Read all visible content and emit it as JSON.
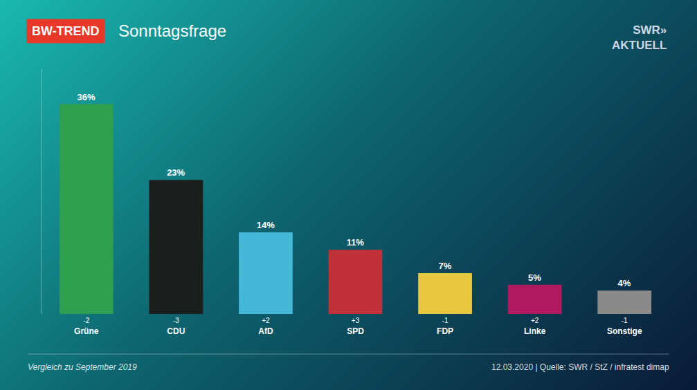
{
  "chart_data": {
    "type": "bar",
    "title": "Sonntagsfrage",
    "badge": "BW-TREND",
    "badge_color": "#e8382a",
    "logo": [
      "SWR»",
      "AKTUELL"
    ],
    "categories": [
      "Grüne",
      "CDU",
      "AfD",
      "SPD",
      "FDP",
      "Linke",
      "Sonstige"
    ],
    "values": [
      36,
      23,
      14,
      11,
      7,
      5,
      4
    ],
    "value_labels": [
      "36%",
      "23%",
      "14%",
      "11%",
      "7%",
      "5%",
      "4%"
    ],
    "change_labels": [
      "-2",
      "-3",
      "+2",
      "+3",
      "-1",
      "+2",
      "-1"
    ],
    "colors": [
      "#2e9e4f",
      "#1a1f1e",
      "#45b8d8",
      "#c0313a",
      "#e8c840",
      "#b01a5e",
      "#8a8a8a"
    ],
    "ylim": [
      0,
      42
    ],
    "data_labels": true,
    "tick_labels": "x",
    "grid": false,
    "footer_left": "Vergleich zu September 2019",
    "footer_right": "12.03.2020 | Quelle: SWR / StZ / infratest dimap"
  }
}
